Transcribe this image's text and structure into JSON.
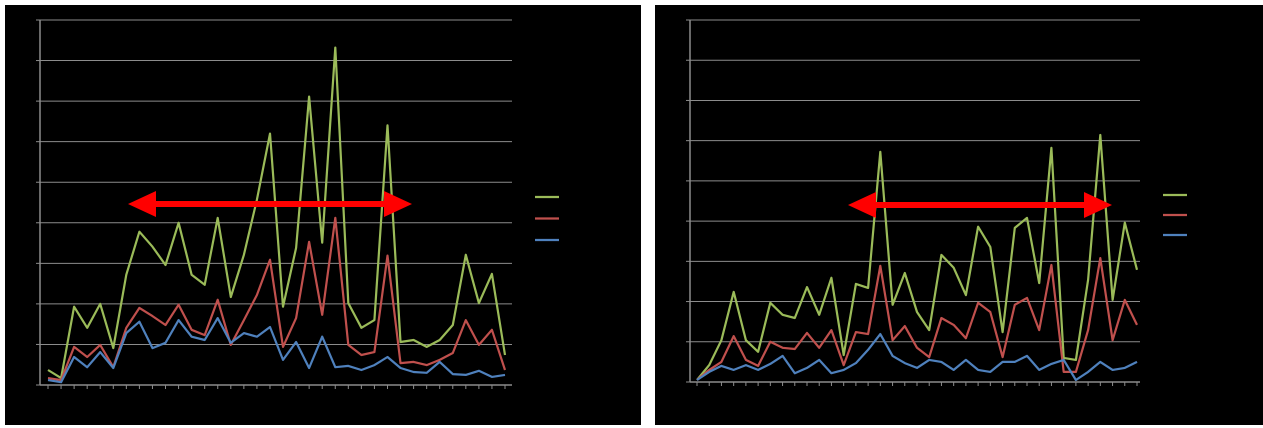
{
  "chart_data": [
    {
      "type": "line",
      "categories": [
        null,
        null,
        null,
        null,
        null,
        null,
        null,
        null,
        null,
        null,
        null,
        null,
        null,
        null,
        null,
        null,
        null,
        null,
        null,
        null,
        null,
        null,
        null,
        null,
        null,
        null,
        null,
        null,
        null,
        null,
        null,
        null,
        null,
        null,
        null,
        null
      ],
      "series": [
        {
          "color": "#9bbb59",
          "values": [
            0.37,
            0.17,
            1.93,
            1.41,
            2.0,
            0.91,
            2.72,
            3.78,
            3.41,
            2.96,
            4.0,
            2.72,
            2.47,
            4.12,
            2.17,
            3.21,
            4.57,
            6.2,
            1.93,
            3.38,
            7.11,
            3.51,
            8.32,
            2.02,
            1.41,
            1.6,
            6.4,
            1.06,
            1.11,
            0.94,
            1.11,
            1.48,
            3.21,
            2.02,
            2.74,
            0.74
          ]
        },
        {
          "color": "#c0504d",
          "values": [
            0.17,
            0.12,
            0.94,
            0.69,
            0.99,
            0.44,
            1.41,
            1.9,
            1.7,
            1.48,
            1.98,
            1.36,
            1.23,
            2.1,
            0.99,
            1.6,
            2.22,
            3.09,
            0.94,
            1.65,
            3.53,
            1.73,
            4.12,
            0.99,
            0.74,
            0.81,
            3.19,
            0.54,
            0.57,
            0.49,
            0.62,
            0.79,
            1.6,
            0.99,
            1.36,
            0.37
          ]
        },
        {
          "color": "#4f81bd",
          "values": [
            0.12,
            0.07,
            0.69,
            0.44,
            0.81,
            0.42,
            1.28,
            1.56,
            0.91,
            1.04,
            1.6,
            1.19,
            1.11,
            1.65,
            1.04,
            1.28,
            1.19,
            1.43,
            0.62,
            1.06,
            0.42,
            1.19,
            0.44,
            0.47,
            0.37,
            0.49,
            0.69,
            0.42,
            0.32,
            0.3,
            0.57,
            0.27,
            0.25,
            0.35,
            0.2,
            0.25
          ]
        }
      ],
      "ylim": [
        0,
        9
      ],
      "yticks": [
        0,
        1,
        2,
        3,
        4,
        5,
        6,
        7,
        8,
        9
      ],
      "grid": true
    },
    {
      "type": "line",
      "categories": [
        null,
        null,
        null,
        null,
        null,
        null,
        null,
        null,
        null,
        null,
        null,
        null,
        null,
        null,
        null,
        null,
        null,
        null,
        null,
        null,
        null,
        null,
        null,
        null,
        null,
        null,
        null,
        null,
        null,
        null,
        null,
        null,
        null,
        null,
        null,
        null,
        null
      ],
      "series": [
        {
          "color": "#9bbb59",
          "values": [
            0.05,
            0.42,
            1.04,
            2.24,
            1.04,
            0.75,
            1.97,
            1.67,
            1.59,
            2.36,
            1.67,
            2.59,
            0.67,
            2.44,
            2.34,
            5.72,
            1.92,
            2.71,
            1.74,
            1.29,
            3.16,
            2.84,
            2.16,
            3.86,
            3.36,
            1.24,
            3.83,
            4.08,
            2.46,
            5.82,
            0.6,
            0.55,
            2.54,
            6.14,
            2.04,
            3.96,
            2.79
          ]
        },
        {
          "color": "#c0504d",
          "values": [
            0.05,
            0.3,
            0.5,
            1.14,
            0.55,
            0.4,
            1.0,
            0.85,
            0.82,
            1.22,
            0.85,
            1.29,
            0.42,
            1.24,
            1.19,
            2.89,
            1.04,
            1.39,
            0.85,
            0.62,
            1.59,
            1.42,
            1.09,
            1.97,
            1.74,
            0.62,
            1.92,
            2.09,
            1.29,
            2.91,
            0.25,
            0.25,
            1.29,
            3.08,
            1.04,
            2.04,
            1.42
          ]
        },
        {
          "color": "#4f81bd",
          "values": [
            0.05,
            0.25,
            0.4,
            0.3,
            0.42,
            0.3,
            0.45,
            0.65,
            0.22,
            0.35,
            0.55,
            0.22,
            0.3,
            0.47,
            0.8,
            1.19,
            0.65,
            0.47,
            0.35,
            0.55,
            0.5,
            0.3,
            0.55,
            0.3,
            0.25,
            0.5,
            0.5,
            0.65,
            0.3,
            0.45,
            0.55,
            0.05,
            0.25,
            0.5,
            0.3,
            0.35,
            0.5
          ]
        }
      ],
      "ylim": [
        0,
        9
      ],
      "yticks": [
        0,
        1,
        2,
        3,
        4,
        5,
        6,
        7,
        8,
        9
      ],
      "grid": true
    }
  ]
}
